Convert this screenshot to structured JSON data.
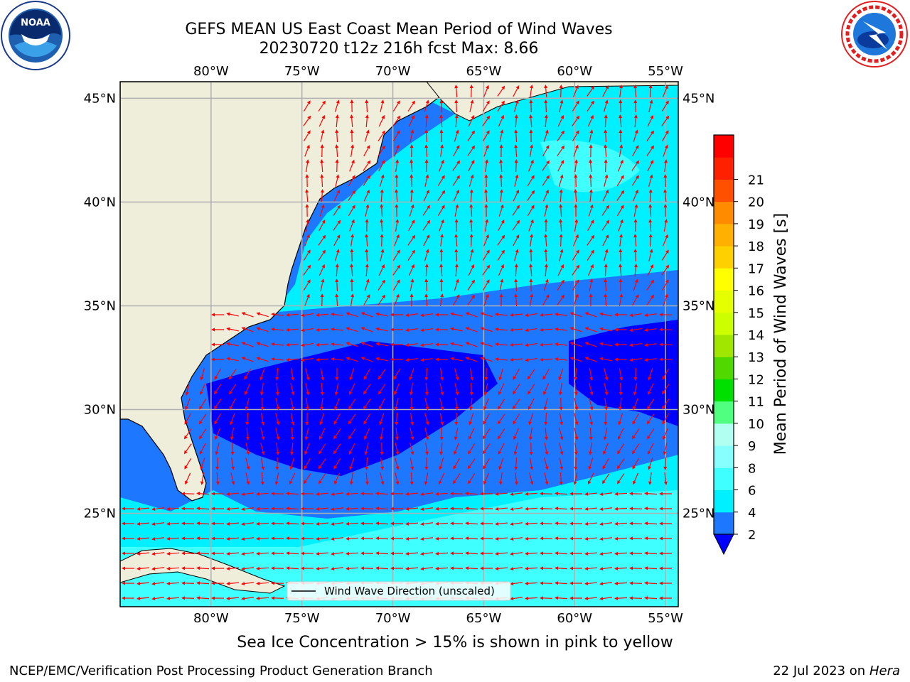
{
  "title": {
    "line1": "GEFS MEAN US East Coast Mean Period of Wind Waves",
    "line2": "20230720 t12z 216h fcst   Max: 8.66"
  },
  "logos": {
    "left": {
      "text": "NOAA",
      "ring_text": "NATIONAL OCEANIC AND ATMOSPHERIC ADMINISTRATION · U.S. DEPARTMENT OF COMMERCE",
      "icon": "noaa-logo"
    },
    "right": {
      "ring_text": "NATIONAL WEATHER SERVICE",
      "icon": "nws-logo"
    }
  },
  "map": {
    "lon_labels": [
      "80°W",
      "75°W",
      "70°W",
      "65°W",
      "60°W",
      "55°W"
    ],
    "lat_labels": [
      "45°N",
      "40°N",
      "35°N",
      "30°N",
      "25°N"
    ],
    "lon_values": [
      -80,
      -75,
      -70,
      -65,
      -60,
      -55
    ],
    "lat_values": [
      45,
      40,
      35,
      30,
      25
    ],
    "lon_range": [
      -85,
      -54.3
    ],
    "lat_range": [
      20.5,
      45.8
    ],
    "legend_label": "Wind Wave Direction (unscaled)",
    "land_color": "#efeedb",
    "arrow_color": "#ff0000",
    "grid_color": "#b0b0b0"
  },
  "colorbar": {
    "label": "Mean Period of Wind Waves [s]",
    "ticks": [
      "2",
      "4",
      "6",
      "8",
      "9",
      "10",
      "11",
      "12",
      "13",
      "14",
      "15",
      "16",
      "17",
      "18",
      "19",
      "20",
      "21"
    ],
    "levels": [
      2,
      4,
      6,
      8,
      9,
      10,
      11,
      12,
      13,
      14,
      15,
      16,
      17,
      18,
      19,
      20,
      21
    ],
    "colors": [
      "#1e78ff",
      "#00f0ff",
      "#40ffff",
      "#88ffff",
      "#b0fff0",
      "#50ff80",
      "#00e000",
      "#50d800",
      "#a0e600",
      "#ccff00",
      "#e6ff00",
      "#ffff00",
      "#ffd000",
      "#ffb000",
      "#ff8c00",
      "#ff5000",
      "#ff2000",
      "#ff0000"
    ],
    "extend_min_color": "#0000ff"
  },
  "footer": {
    "note": "Sea Ice Concentration > 15% is shown in pink to yellow",
    "left": "NCEP/EMC/Verification Post Processing Product Generation Branch",
    "right_date": "22 Jul 2023 on ",
    "right_host": "Hera"
  }
}
